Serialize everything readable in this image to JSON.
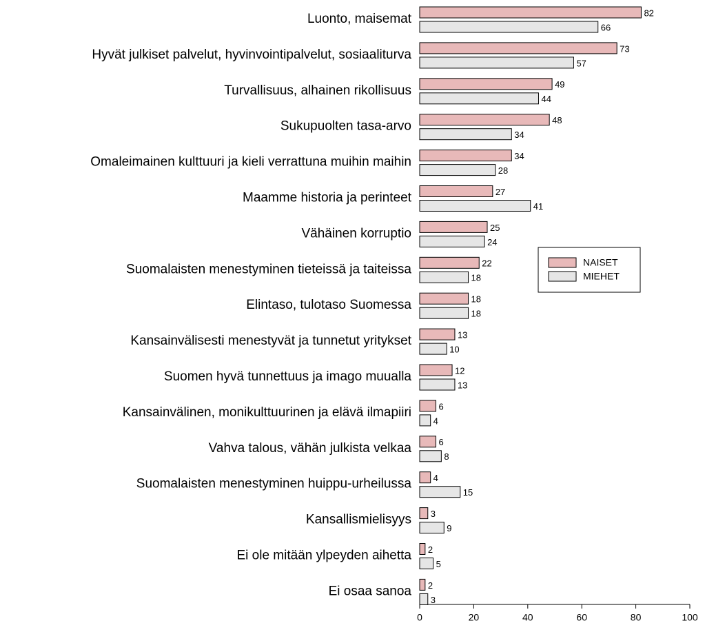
{
  "chart_data": {
    "type": "bar",
    "orientation": "horizontal",
    "categories": [
      "Luonto, maisemat",
      "Hyvät julkiset palvelut, hyvinvointipalvelut, sosiaaliturva",
      "Turvallisuus, alhainen rikollisuus",
      "Sukupuolten tasa-arvo",
      "Omaleimainen kulttuuri ja kieli verrattuna muihin maihin",
      "Maamme historia ja perinteet",
      "Vähäinen korruptio",
      "Suomalaisten menestyminen tieteissä ja taiteissa",
      "Elintaso, tulotaso Suomessa",
      "Kansainvälisesti menestyvät ja tunnetut yritykset",
      "Suomen hyvä tunnettuus ja imago muualla",
      "Kansainvälinen, monikulttuurinen ja elävä ilmapiiri",
      "Vahva talous, vähän julkista velkaa",
      "Suomalaisten menestyminen huippu-urheilussa",
      "Kansallismielisyys",
      "Ei ole mitään ylpeyden aihetta",
      "Ei osaa sanoa"
    ],
    "series": [
      {
        "name": "NAISET",
        "color": "#e8b9b9",
        "values": [
          82,
          73,
          49,
          48,
          34,
          27,
          25,
          22,
          18,
          13,
          12,
          6,
          6,
          4,
          3,
          2,
          2
        ]
      },
      {
        "name": "MIEHET",
        "color": "#e6e6e6",
        "values": [
          66,
          57,
          44,
          34,
          28,
          41,
          24,
          18,
          18,
          10,
          13,
          4,
          8,
          15,
          9,
          5,
          3
        ]
      }
    ],
    "xlim": [
      0,
      100
    ],
    "xticks": [
      0,
      20,
      40,
      60,
      80,
      100
    ],
    "legend": "right"
  }
}
